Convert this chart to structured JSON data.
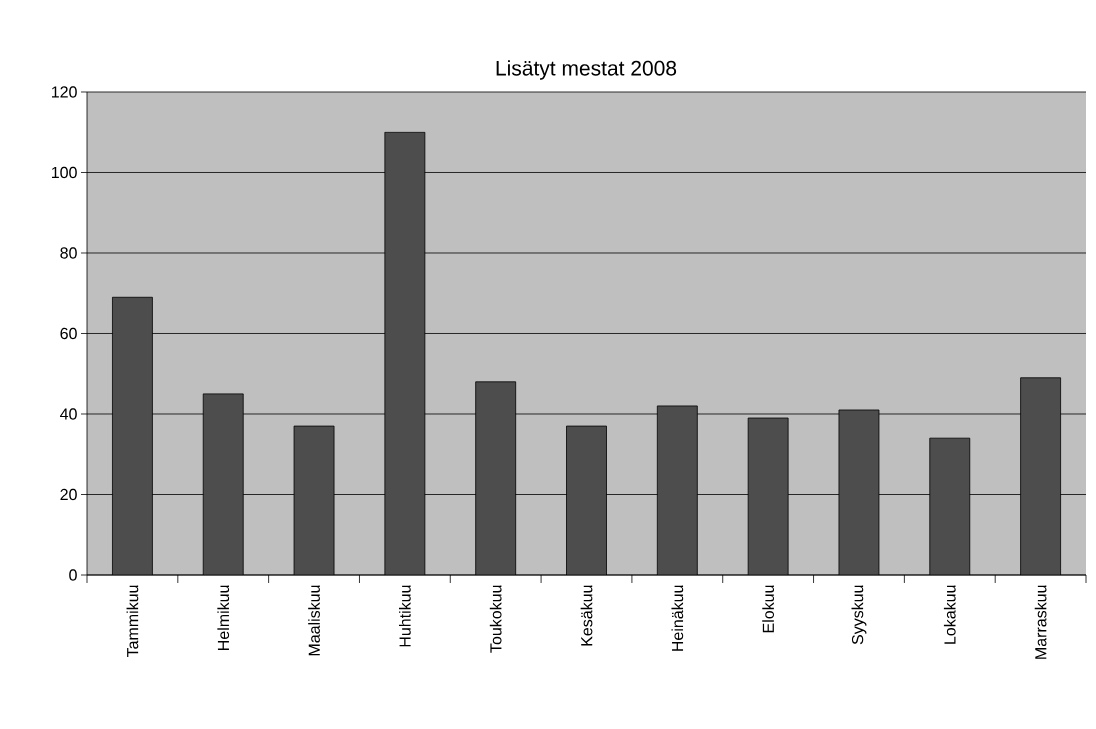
{
  "chart_data": {
    "type": "bar",
    "title": "Lisätyt mestat 2008",
    "categories": [
      "Tammikuu",
      "Helmikuu",
      "Maaliskuu",
      "Huhtikuu",
      "Toukokuu",
      "Kesäkuu",
      "Heinäkuu",
      "Elokuu",
      "Syyskuu",
      "Lokakuu",
      "Marraskuu"
    ],
    "values": [
      69,
      45,
      37,
      110,
      48,
      37,
      42,
      39,
      41,
      34,
      49
    ],
    "color": "#4d4d4d",
    "ylim": [
      0,
      120
    ],
    "yticks": [
      0,
      20,
      40,
      60,
      80,
      100,
      120
    ],
    "grid": "y"
  }
}
